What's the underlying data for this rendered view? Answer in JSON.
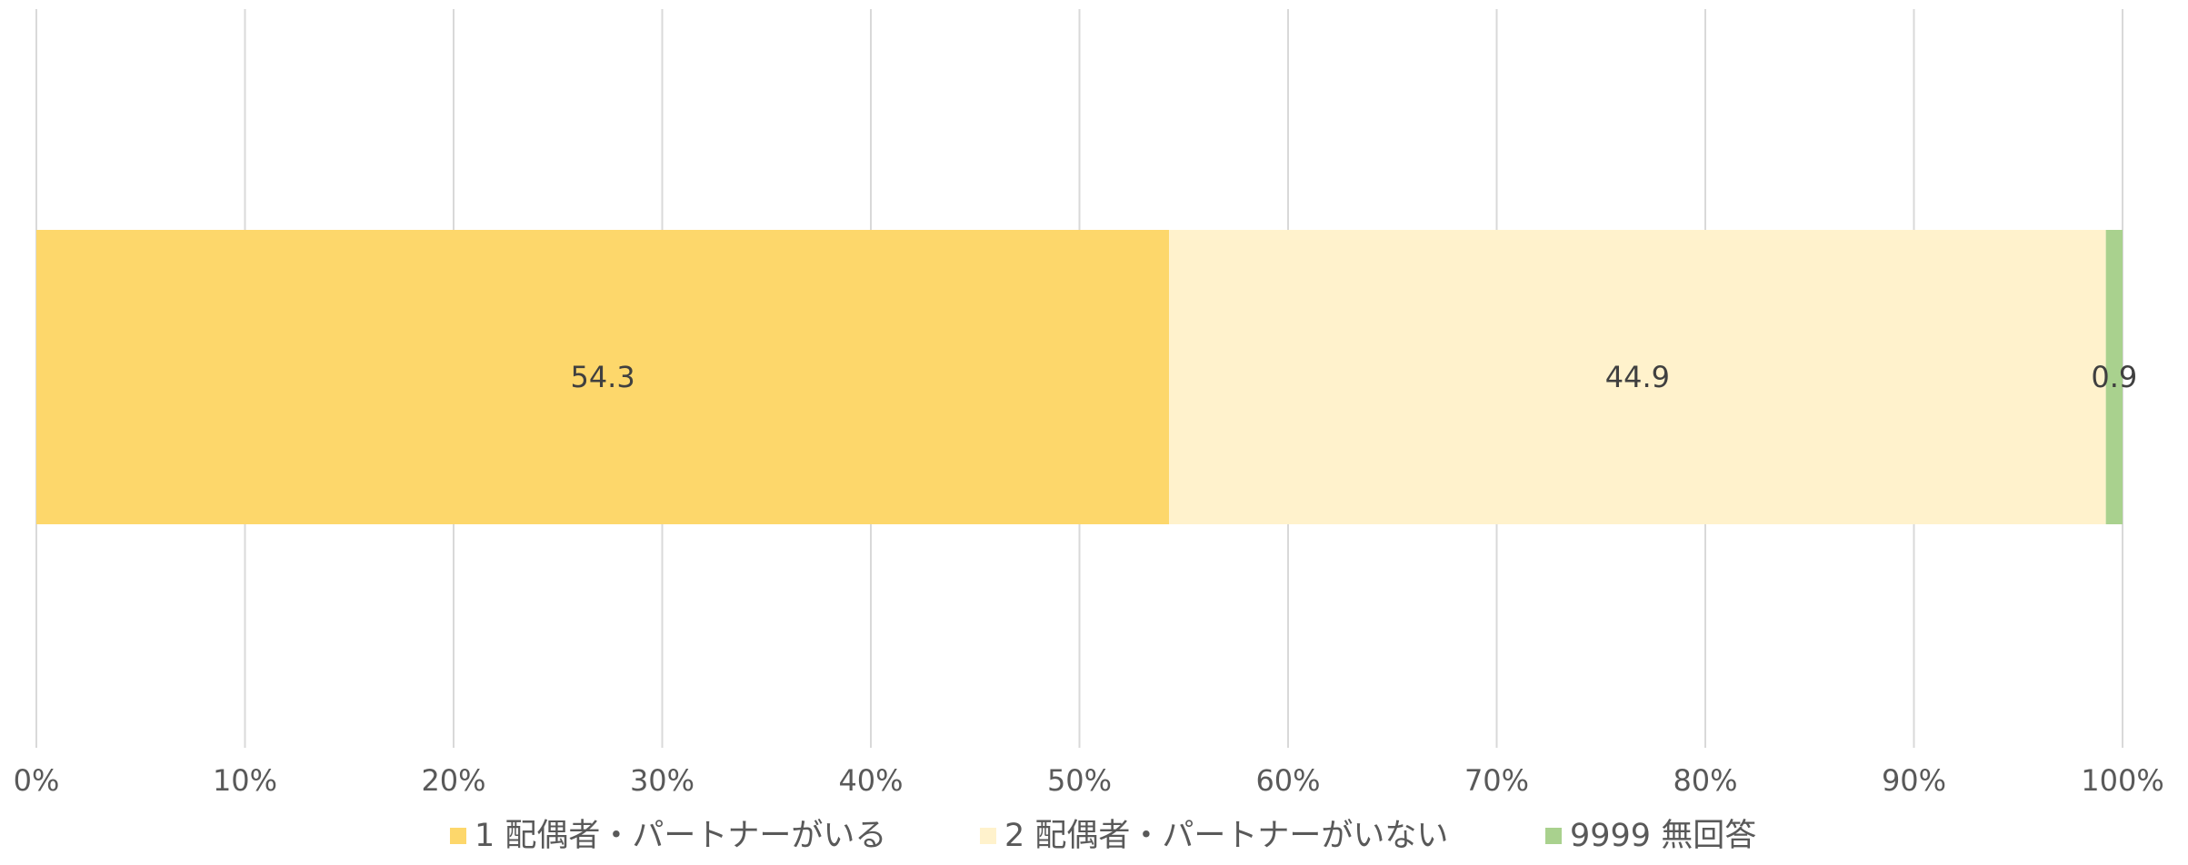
{
  "chart_data": {
    "type": "bar",
    "orientation": "horizontal",
    "stacked": true,
    "normalized_percent": true,
    "categories": [
      ""
    ],
    "series": [
      {
        "name": "1 配偶者・パートナーがいる",
        "values": [
          54.3
        ],
        "color": "#FDD76B"
      },
      {
        "name": "2 配偶者・パートナーがいない",
        "values": [
          44.9
        ],
        "color": "#FFF2CC"
      },
      {
        "name": "9999 無回答",
        "values": [
          0.9
        ],
        "color": "#A9D18E"
      }
    ],
    "x_ticks": [
      "0%",
      "10%",
      "20%",
      "30%",
      "40%",
      "50%",
      "60%",
      "70%",
      "80%",
      "90%",
      "100%"
    ],
    "xlim": [
      0,
      100
    ],
    "grid": "vertical",
    "legend_position": "bottom",
    "title": "",
    "xlabel": "",
    "ylabel": ""
  },
  "colors": {
    "grid": "#D9D9D9",
    "tick_text": "#595959",
    "data_label_text": "#404040"
  }
}
